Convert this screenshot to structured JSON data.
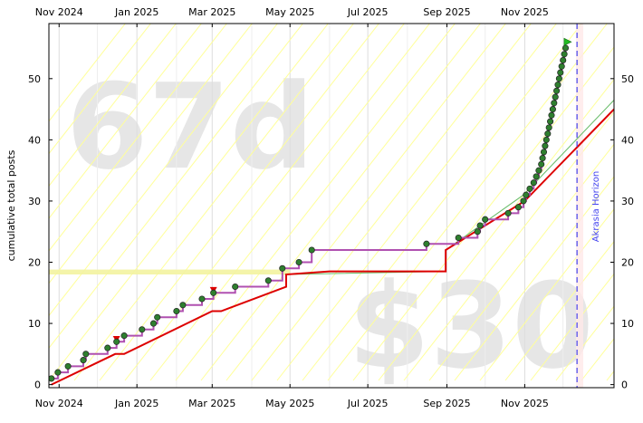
{
  "chart_data": {
    "type": "line",
    "ylabel": "cumulative total posts",
    "x_ticks": [
      "Nov 2024",
      "Jan 2025",
      "Mar 2025",
      "May 2025",
      "Jul 2025",
      "Sep 2025",
      "Nov 2025"
    ],
    "y_ticks": [
      0,
      10,
      20,
      30,
      40,
      50
    ],
    "xlim": [
      "2024-10-24",
      "2026-01-10"
    ],
    "ylim": [
      -0.5,
      59
    ],
    "watermark_days": "67d",
    "watermark_amount": "$30",
    "horizon_label": "Akrasia Horizon",
    "horizon_date": "2025-12-12",
    "grid": true,
    "colors": {
      "bright_red_line": "#dd0000",
      "path": "#b050b0",
      "datapoint": "#2f7f2f",
      "horizon": "#4444ee",
      "guide_lines": "#ffff99",
      "orange_band": "#f3f3a0",
      "green_line": "#66bb66"
    },
    "series": [
      {
        "name": "",
        "role": "datapoints",
        "points": [
          [
            "2024-10-26",
            1
          ],
          [
            "2024-10-31",
            2
          ],
          [
            "2024-11-08",
            3
          ],
          [
            "2024-11-20",
            4
          ],
          [
            "2024-11-22",
            5
          ],
          [
            "2024-12-09",
            6
          ],
          [
            "2024-12-16",
            7
          ],
          [
            "2024-12-22",
            8
          ],
          [
            "2025-01-05",
            9
          ],
          [
            "2025-01-14",
            10
          ],
          [
            "2025-01-17",
            11
          ],
          [
            "2025-02-01",
            12
          ],
          [
            "2025-02-06",
            13
          ],
          [
            "2025-02-21",
            14
          ],
          [
            "2025-03-02",
            15
          ],
          [
            "2025-03-19",
            16
          ],
          [
            "2025-04-14",
            17
          ],
          [
            "2025-04-25",
            19
          ],
          [
            "2025-05-08",
            20
          ],
          [
            "2025-05-18",
            22
          ],
          [
            "2025-08-16",
            23
          ],
          [
            "2025-09-10",
            24
          ],
          [
            "2025-09-25",
            25
          ],
          [
            "2025-09-27",
            26
          ],
          [
            "2025-10-01",
            27
          ],
          [
            "2025-10-19",
            28
          ],
          [
            "2025-10-27",
            29
          ],
          [
            "2025-10-31",
            30
          ],
          [
            "2025-11-02",
            31
          ],
          [
            "2025-11-05",
            32
          ],
          [
            "2025-11-08",
            33
          ],
          [
            "2025-11-10",
            34
          ],
          [
            "2025-11-12",
            35
          ],
          [
            "2025-11-14",
            36
          ],
          [
            "2025-11-15",
            37
          ],
          [
            "2025-11-16",
            38
          ],
          [
            "2025-11-17",
            39
          ],
          [
            "2025-11-18",
            40
          ],
          [
            "2025-11-19",
            41
          ],
          [
            "2025-11-20",
            42
          ],
          [
            "2025-11-21",
            43
          ],
          [
            "2025-11-22",
            44
          ],
          [
            "2025-11-23",
            45
          ],
          [
            "2025-11-24",
            46
          ],
          [
            "2025-11-25",
            47
          ],
          [
            "2025-11-26",
            48
          ],
          [
            "2025-11-27",
            49
          ],
          [
            "2025-11-28",
            50
          ],
          [
            "2025-11-29",
            51
          ],
          [
            "2025-11-30",
            52
          ],
          [
            "2025-12-01",
            53
          ],
          [
            "2025-12-02",
            54
          ],
          [
            "2025-12-03",
            55
          ]
        ]
      },
      {
        "name": "",
        "role": "bright-red-line",
        "points": [
          [
            "2024-10-26",
            0
          ],
          [
            "2024-12-15",
            5
          ],
          [
            "2024-12-22",
            5
          ],
          [
            "2025-03-01",
            12
          ],
          [
            "2025-03-08",
            12
          ],
          [
            "2025-04-28",
            16
          ],
          [
            "2025-04-28",
            18
          ],
          [
            "2025-06-01",
            18.5
          ],
          [
            "2025-08-31",
            18.5
          ],
          [
            "2025-08-31",
            22
          ],
          [
            "2025-11-01",
            30
          ],
          [
            "2026-01-10",
            45
          ]
        ]
      },
      {
        "name": "",
        "role": "green-line",
        "points": [
          [
            "2025-04-27",
            18
          ],
          [
            "2025-08-31",
            18.5
          ],
          [
            "2025-08-31",
            22
          ],
          [
            "2025-10-31",
            31
          ],
          [
            "2026-01-10",
            46.5
          ]
        ]
      }
    ],
    "red_markers": [
      [
        "2024-12-16",
        7.5
      ],
      [
        "2025-03-02",
        15.5
      ]
    ],
    "final_marker": [
      "2025-12-04",
      56
    ]
  }
}
